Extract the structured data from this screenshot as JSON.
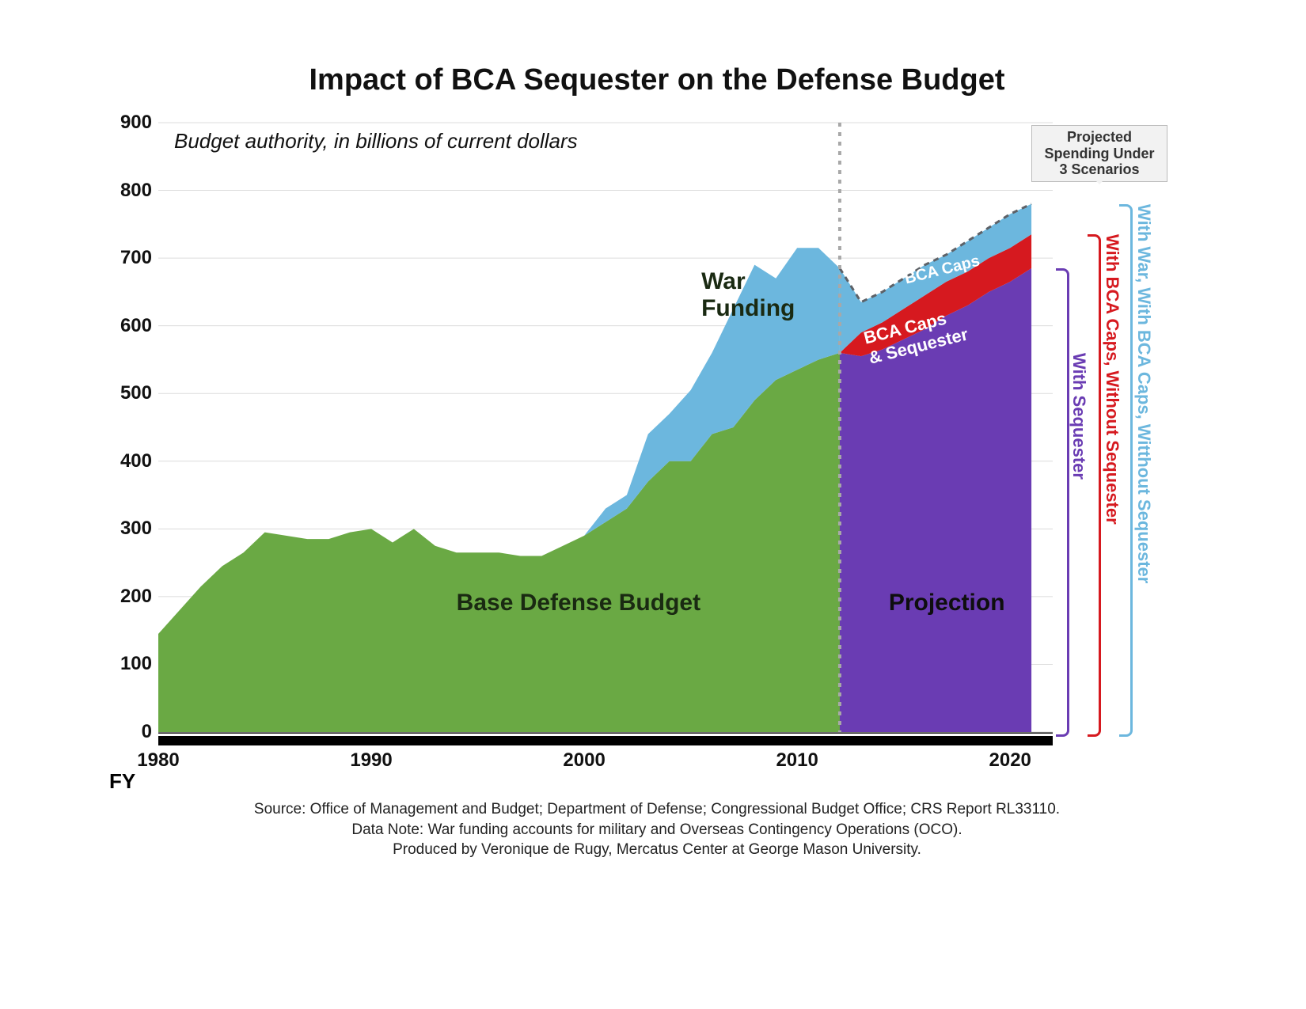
{
  "title": "Impact of BCA Sequester on the Defense Budget",
  "subtitle": "Budget authority, in billions of current dollars",
  "fy_label": "FY",
  "x_ticks": [
    "1980",
    "1990",
    "2000",
    "2010",
    "2020"
  ],
  "y_ticks": [
    "0",
    "100",
    "200",
    "300",
    "400",
    "500",
    "600",
    "700",
    "800",
    "900"
  ],
  "ylim": [
    0,
    900
  ],
  "xlim": [
    1980,
    2022
  ],
  "labels": {
    "base": "Base Defense Budget",
    "war": "War\nFunding",
    "projection": "Projection",
    "bca_caps": "BCA Caps",
    "bca_caps_seq": "BCA Caps\n& Sequester",
    "proj_box": "Projected\nSpending Under\n3 Scenarios",
    "scen1": "With  Sequester",
    "scen2": "With BCA Caps, Without  Sequester",
    "scen3": "With  War, With BCA Caps, Witthout Sequester"
  },
  "colors": {
    "base": "#6aa944",
    "war": "#6cb7de",
    "bca_caps": "#d6191f",
    "projection": "#6a3cb3",
    "grid": "#dcdcdc",
    "dashed_divider": "#a8a8a8",
    "dashed_top": "#5d6167",
    "scen1": "#6a3cb3",
    "scen2": "#d6191f",
    "scen3": "#6cb7de",
    "background": "#ffffff",
    "title_text": "#111111"
  },
  "font": {
    "title_size": 38,
    "tick_size": 24,
    "subtitle_size": 26,
    "label_large": 30,
    "label_med": 24,
    "label_small": 20,
    "source_size": 19
  },
  "years": [
    1980,
    1981,
    1982,
    1983,
    1984,
    1985,
    1986,
    1987,
    1988,
    1989,
    1990,
    1991,
    1992,
    1993,
    1994,
    1995,
    1996,
    1997,
    1998,
    1999,
    2000,
    2001,
    2002,
    2003,
    2004,
    2005,
    2006,
    2007,
    2008,
    2009,
    2010,
    2011,
    2012,
    2013,
    2014,
    2015,
    2016,
    2017,
    2018,
    2019,
    2020,
    2021
  ],
  "base_defense": [
    145,
    180,
    215,
    245,
    265,
    295,
    290,
    285,
    285,
    295,
    300,
    280,
    300,
    275,
    265,
    265,
    265,
    260,
    260,
    275,
    290,
    310,
    330,
    370,
    400,
    400,
    440,
    450,
    490,
    520,
    535,
    550,
    560,
    null,
    null,
    null,
    null,
    null,
    null,
    null,
    null,
    null
  ],
  "war_funding": [
    0,
    0,
    0,
    0,
    0,
    0,
    0,
    0,
    0,
    0,
    0,
    0,
    0,
    0,
    0,
    0,
    0,
    0,
    0,
    0,
    0,
    20,
    20,
    70,
    70,
    105,
    120,
    175,
    200,
    150,
    180,
    165,
    125,
    null,
    null,
    null,
    null,
    null,
    null,
    null,
    null,
    null
  ],
  "proj_sequester": [
    null,
    null,
    null,
    null,
    null,
    null,
    null,
    null,
    null,
    null,
    null,
    null,
    null,
    null,
    null,
    null,
    null,
    null,
    null,
    null,
    null,
    null,
    null,
    null,
    null,
    null,
    null,
    null,
    null,
    null,
    null,
    null,
    560,
    555,
    565,
    580,
    595,
    615,
    630,
    650,
    665,
    685
  ],
  "proj_bca_caps": [
    null,
    null,
    null,
    null,
    null,
    null,
    null,
    null,
    null,
    null,
    null,
    null,
    null,
    null,
    null,
    null,
    null,
    null,
    null,
    null,
    null,
    null,
    null,
    null,
    null,
    null,
    null,
    null,
    null,
    null,
    null,
    null,
    560,
    590,
    605,
    625,
    645,
    665,
    680,
    700,
    715,
    735
  ],
  "proj_with_war": [
    null,
    null,
    null,
    null,
    null,
    null,
    null,
    null,
    null,
    null,
    null,
    null,
    null,
    null,
    null,
    null,
    null,
    null,
    null,
    null,
    null,
    null,
    null,
    null,
    null,
    null,
    null,
    null,
    null,
    null,
    null,
    null,
    685,
    635,
    650,
    670,
    690,
    705,
    725,
    745,
    765,
    780
  ],
  "source_lines": [
    "Source: Office of Management and Budget; Department of Defense; Congressional Budget Office; CRS Report RL33110.",
    "Data Note: War funding accounts for military and Overseas Contingency Operations (OCO).",
    "Produced by Veronique de Rugy, Mercatus Center at George Mason University."
  ],
  "divider_year": 2012
}
